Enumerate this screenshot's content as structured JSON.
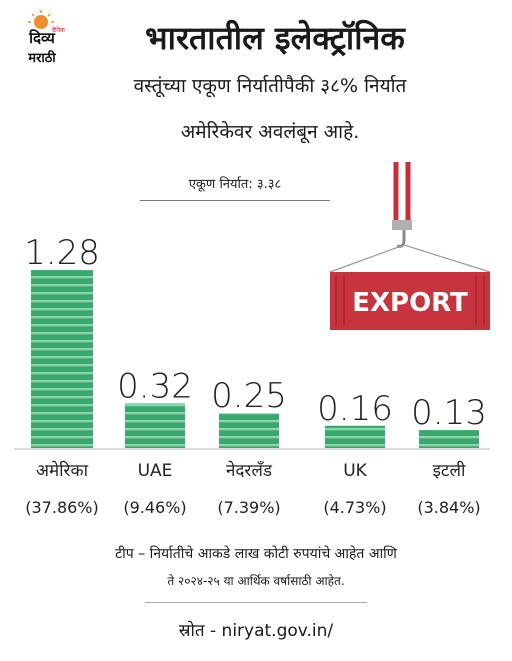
{
  "logo": {
    "line1": "दिव्य",
    "line2": "मराठी",
    "tag": "दैनिक"
  },
  "header": {
    "title": "भारतातील इलेक्ट्रॉनिक",
    "subtitle_line1": "वस्तूंच्या एकूण निर्यातीपैकी ३८% निर्यात",
    "subtitle_line2": "अमेरिकेवर अवलंबून आहे."
  },
  "total_label": "एकूण निर्यात: ३.३८",
  "export_sign": "EXPORT",
  "colors": {
    "bar": "#3aa96f",
    "bar_stripe": "#8fd6ad",
    "container": "#c8343d",
    "hook": "#cc2a36"
  },
  "chart_data": {
    "type": "bar",
    "categories": [
      "अमेरिका",
      "UAE",
      "नेदरलँड",
      "UK",
      "इटली"
    ],
    "values": [
      1.28,
      0.32,
      0.25,
      0.16,
      0.13
    ],
    "value_labels": [
      "1.28",
      "0.32",
      "0.25",
      "0.16",
      "0.13"
    ],
    "percent_labels": [
      "(37.86%)",
      "(9.46%)",
      "(7.39%)",
      "(4.73%)",
      "(3.84%)"
    ],
    "ylim": [
      0,
      1.28
    ],
    "grid": false
  },
  "footer": {
    "note_line1": "टीप – निर्यातीचे आकडे लाख कोटी रुपयांचे आहेत आणि",
    "note_line2": "ते २०२४-२५ या आर्थिक वर्षासाठी आहेत.",
    "source": "स्रोत - niryat.gov.in/"
  }
}
